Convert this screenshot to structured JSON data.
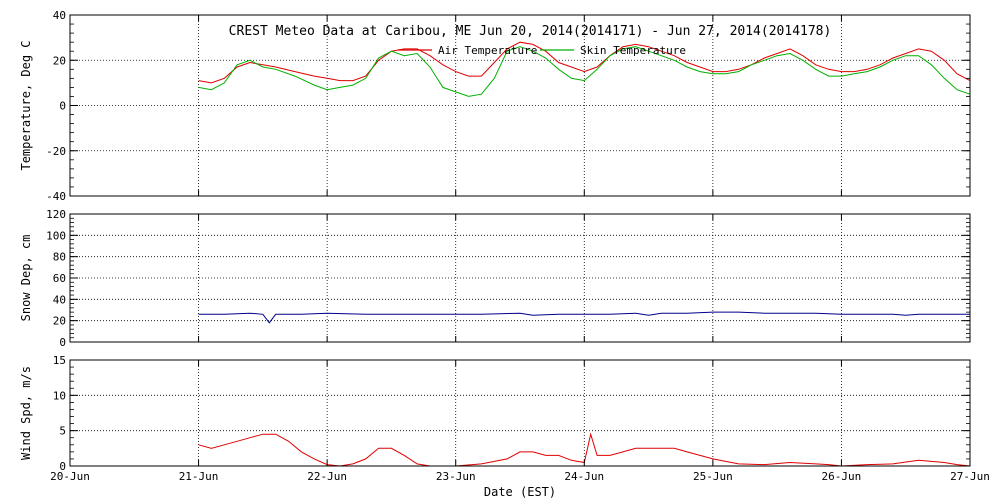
{
  "chart_data": {
    "type": "line",
    "title": "CREST Meteo Data at Caribou, ME   Jun 20, 2014(2014171) - Jun 27, 2014(2014178)",
    "xlabel": "Date (EST)",
    "x_ticks": [
      "20-Jun",
      "21-Jun",
      "22-Jun",
      "23-Jun",
      "24-Jun",
      "25-Jun",
      "26-Jun",
      "27-Jun"
    ],
    "xlim": [
      0,
      7
    ],
    "grid": true,
    "legend_position": "top-center",
    "panels": [
      {
        "ylabel": "Temperature, Deg C",
        "ylim": [
          -40,
          40
        ],
        "y_ticks": [
          40,
          20,
          0,
          -20,
          -40
        ],
        "series": [
          {
            "name": "Air Temperature",
            "color": "#e00000",
            "x": [
              1.0,
              1.1,
              1.2,
              1.3,
              1.4,
              1.5,
              1.6,
              1.75,
              1.9,
              2.0,
              2.1,
              2.2,
              2.3,
              2.4,
              2.5,
              2.6,
              2.7,
              2.8,
              2.9,
              3.0,
              3.1,
              3.2,
              3.3,
              3.4,
              3.5,
              3.6,
              3.7,
              3.8,
              3.9,
              4.0,
              4.1,
              4.2,
              4.3,
              4.4,
              4.5,
              4.6,
              4.7,
              4.8,
              4.9,
              5.0,
              5.1,
              5.2,
              5.3,
              5.4,
              5.5,
              5.6,
              5.7,
              5.8,
              5.9,
              6.0,
              6.1,
              6.2,
              6.3,
              6.4,
              6.5,
              6.6,
              6.7,
              6.8,
              6.9,
              7.0
            ],
            "y": [
              11,
              10,
              12,
              17,
              19,
              18,
              17,
              15,
              13,
              12,
              11,
              11,
              13,
              20,
              24,
              25,
              25,
              22,
              18,
              15,
              13,
              13,
              19,
              25,
              28,
              27,
              24,
              19,
              17,
              15,
              17,
              22,
              26,
              27,
              26,
              24,
              22,
              19,
              17,
              15,
              15,
              16,
              18,
              21,
              23,
              25,
              22,
              18,
              16,
              15,
              15,
              16,
              18,
              21,
              23,
              25,
              24,
              20,
              14,
              11
            ]
          },
          {
            "name": "Skin Temperature",
            "color": "#00b000",
            "x": [
              1.0,
              1.1,
              1.2,
              1.3,
              1.4,
              1.5,
              1.6,
              1.75,
              1.9,
              2.0,
              2.1,
              2.2,
              2.3,
              2.4,
              2.5,
              2.6,
              2.7,
              2.8,
              2.9,
              3.0,
              3.1,
              3.2,
              3.3,
              3.4,
              3.5,
              3.6,
              3.7,
              3.8,
              3.9,
              4.0,
              4.1,
              4.2,
              4.3,
              4.4,
              4.5,
              4.6,
              4.7,
              4.8,
              4.9,
              5.0,
              5.1,
              5.2,
              5.3,
              5.4,
              5.5,
              5.6,
              5.7,
              5.8,
              5.9,
              6.0,
              6.1,
              6.2,
              6.3,
              6.4,
              6.5,
              6.6,
              6.7,
              6.8,
              6.9,
              7.0
            ],
            "y": [
              8,
              7,
              10,
              18,
              20,
              17,
              16,
              13,
              9,
              7,
              8,
              9,
              12,
              21,
              24,
              22,
              23,
              17,
              8,
              6,
              4,
              5,
              12,
              24,
              26,
              24,
              21,
              16,
              12,
              11,
              16,
              22,
              25,
              26,
              24,
              22,
              20,
              17,
              15,
              14,
              14,
              15,
              18,
              20,
              22,
              23,
              20,
              16,
              13,
              13,
              14,
              15,
              17,
              20,
              22,
              22,
              18,
              12,
              7,
              5
            ]
          }
        ]
      },
      {
        "ylabel": "Snow Dep, cm",
        "ylim": [
          0,
          120
        ],
        "y_ticks": [
          120,
          100,
          80,
          60,
          40,
          20,
          0
        ],
        "series": [
          {
            "name": "",
            "color": "#00008b",
            "x": [
              1.0,
              1.2,
              1.4,
              1.5,
              1.55,
              1.6,
              1.8,
              2.0,
              2.3,
              2.6,
              2.9,
              3.2,
              3.5,
              3.6,
              3.8,
              4.0,
              4.2,
              4.4,
              4.5,
              4.6,
              4.8,
              5.0,
              5.2,
              5.4,
              5.6,
              5.8,
              6.0,
              6.2,
              6.4,
              6.5,
              6.6,
              6.8,
              7.0
            ],
            "y": [
              26,
              26,
              27,
              26,
              18,
              26,
              26,
              27,
              26,
              26,
              26,
              26,
              27,
              25,
              26,
              26,
              26,
              27,
              25,
              27,
              27,
              28,
              28,
              27,
              27,
              27,
              26,
              26,
              26,
              25,
              26,
              26,
              26
            ]
          }
        ]
      },
      {
        "ylabel": "Wind Spd, m/s",
        "ylim": [
          0,
          15
        ],
        "y_ticks": [
          15,
          10,
          5,
          0
        ],
        "series": [
          {
            "name": "",
            "color": "#e00000",
            "x": [
              1.0,
              1.1,
              1.2,
              1.3,
              1.4,
              1.5,
              1.6,
              1.7,
              1.8,
              1.9,
              2.0,
              2.1,
              2.2,
              2.3,
              2.4,
              2.5,
              2.6,
              2.7,
              2.8,
              2.9,
              3.0,
              3.2,
              3.4,
              3.5,
              3.6,
              3.7,
              3.8,
              3.9,
              4.0,
              4.05,
              4.1,
              4.2,
              4.3,
              4.4,
              4.5,
              4.6,
              4.7,
              4.8,
              4.9,
              5.0,
              5.2,
              5.4,
              5.6,
              5.8,
              5.9,
              6.0,
              6.2,
              6.4,
              6.6,
              6.8,
              6.9,
              7.0
            ],
            "y": [
              3,
              2.5,
              3,
              3.5,
              4,
              4.5,
              4.5,
              3.5,
              2,
              1,
              0.2,
              0,
              0.3,
              1,
              2.5,
              2.5,
              1.5,
              0.3,
              0,
              0,
              0,
              0.3,
              1,
              2,
              2,
              1.5,
              1.5,
              0.8,
              0.5,
              4.5,
              1.5,
              1.5,
              2,
              2.5,
              2.5,
              2.5,
              2.5,
              2,
              1.5,
              1,
              0.3,
              0.2,
              0.5,
              0.3,
              0.2,
              0,
              0.2,
              0.3,
              0.8,
              0.5,
              0.2,
              0
            ]
          }
        ]
      }
    ]
  }
}
